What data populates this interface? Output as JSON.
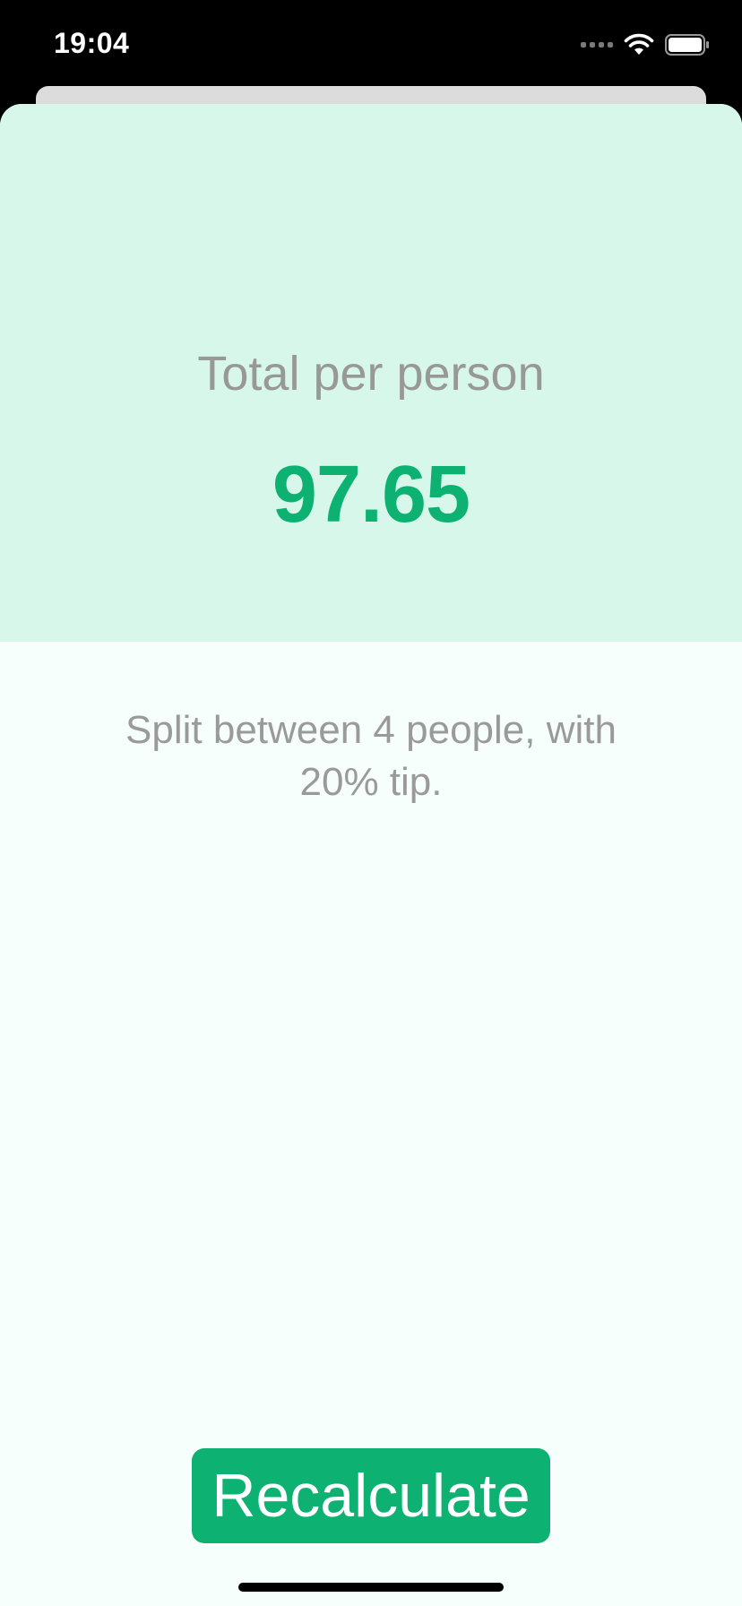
{
  "status_bar": {
    "time": "19:04",
    "icons": [
      "signal-icon",
      "wifi-icon",
      "battery-icon"
    ]
  },
  "result": {
    "title": "Total per person",
    "amount": "97.65"
  },
  "summary": {
    "text": "Split between 4 people, with 20% tip."
  },
  "actions": {
    "recalculate_label": "Recalculate"
  },
  "colors": {
    "accent": "#0db272",
    "result_background": "#d7f7ea",
    "sheet_background": "#f7fffd",
    "secondary_text": "#989898"
  }
}
